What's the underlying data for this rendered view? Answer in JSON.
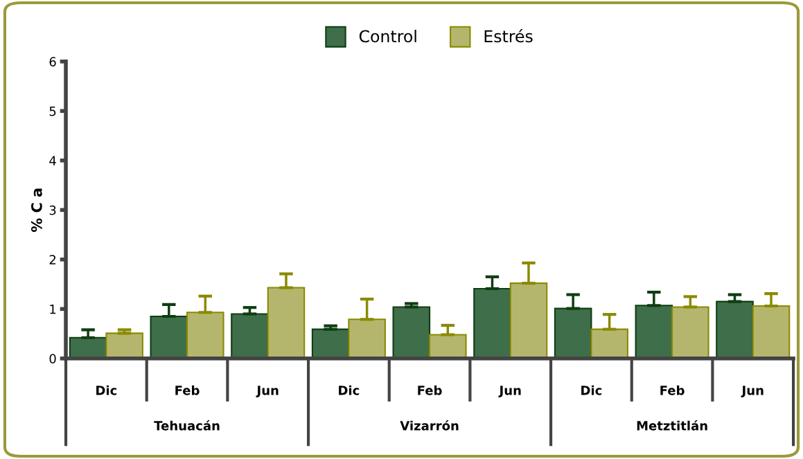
{
  "chart_data": {
    "type": "bar",
    "ylabel": "% C a",
    "categories": [
      "Dic",
      "Feb",
      "Jun",
      "Dic",
      "Feb",
      "Jun",
      "Dic",
      "Feb",
      "Jun"
    ],
    "annotations": [
      "Tehuacán",
      "Vizarrón",
      "Metztitlán"
    ],
    "series": [
      {
        "name": "Control",
        "color": "#3f6e4a",
        "values": [
          0.42,
          0.85,
          0.9,
          0.59,
          1.04,
          1.41,
          1.01,
          1.07,
          1.15
        ],
        "errors": [
          [
            0.42,
            0.58
          ],
          [
            0.85,
            1.09
          ],
          [
            0.9,
            1.03
          ],
          [
            0.59,
            0.66
          ],
          [
            1.04,
            1.11
          ],
          [
            1.41,
            1.65
          ],
          [
            1.01,
            1.29
          ],
          [
            1.07,
            1.34
          ],
          [
            1.15,
            1.29
          ]
        ]
      },
      {
        "name": "Estrés",
        "color": "#b5b66e",
        "values": [
          0.51,
          0.93,
          1.43,
          0.79,
          0.48,
          1.52,
          0.59,
          1.04,
          1.06
        ],
        "errors": [
          [
            0.51,
            0.58
          ],
          [
            0.93,
            1.26
          ],
          [
            1.43,
            1.71
          ],
          [
            0.79,
            1.2
          ],
          [
            0.48,
            0.67
          ],
          [
            1.52,
            1.93
          ],
          [
            0.59,
            0.89
          ],
          [
            1.04,
            1.25
          ],
          [
            1.06,
            1.31
          ]
        ]
      }
    ],
    "ylim": [
      0,
      6
    ],
    "yticks": [
      0,
      1,
      2,
      3,
      4,
      5,
      6
    ],
    "grid": false,
    "legend": "top"
  }
}
